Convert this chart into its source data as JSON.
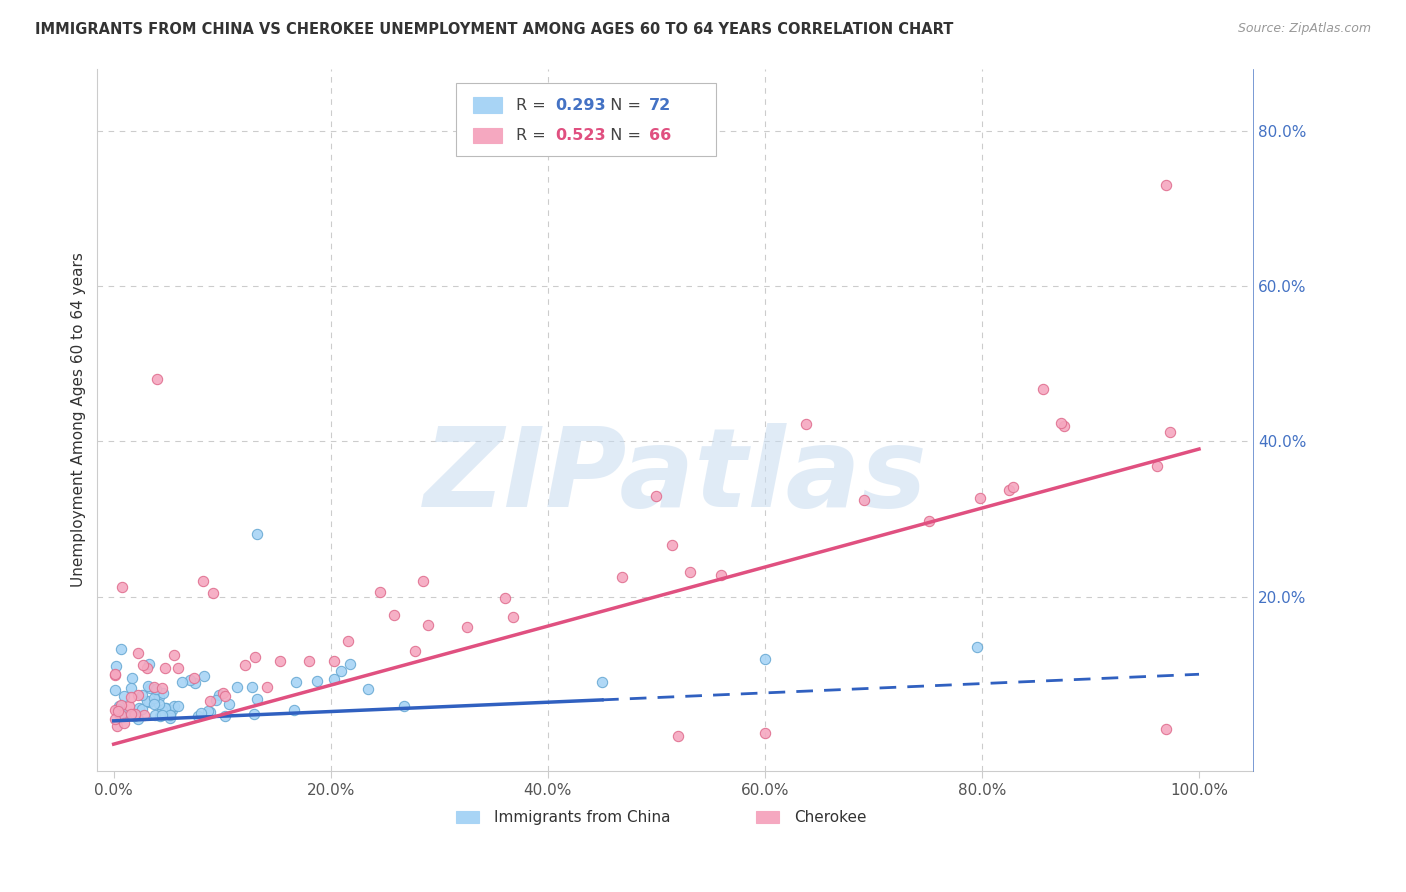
{
  "title": "IMMIGRANTS FROM CHINA VS CHEROKEE UNEMPLOYMENT AMONG AGES 60 TO 64 YEARS CORRELATION CHART",
  "source": "Source: ZipAtlas.com",
  "ylabel": "Unemployment Among Ages 60 to 64 years",
  "series1_label": "Immigrants from China",
  "series2_label": "Cherokee",
  "series1_color": "#A8D4F5",
  "series2_color": "#F5A8C0",
  "series1_edge_color": "#6AAAD4",
  "series2_edge_color": "#E07090",
  "series1_line_color": "#3060C0",
  "series2_line_color": "#E05080",
  "series1_R": "0.293",
  "series1_N": "72",
  "series2_R": "0.523",
  "series2_N": "66",
  "r_n_color_1": "#4472C4",
  "r_n_color_2": "#E05080",
  "watermark": "ZIPatlas",
  "watermark_color": "#C8DCF0",
  "background_color": "#FFFFFF",
  "grid_color": "#CCCCCC",
  "right_axis_color": "#4472C4",
  "title_color": "#333333",
  "source_color": "#999999",
  "tick_label_color": "#555555"
}
